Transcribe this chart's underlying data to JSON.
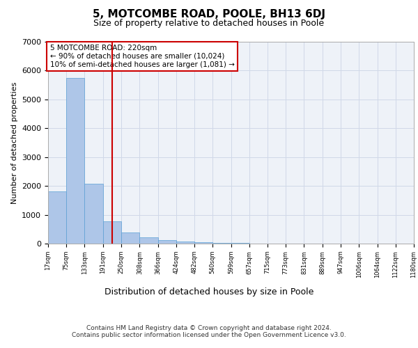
{
  "title": "5, MOTCOMBE ROAD, POOLE, BH13 6DJ",
  "subtitle": "Size of property relative to detached houses in Poole",
  "xlabel": "Distribution of detached houses by size in Poole",
  "ylabel": "Number of detached properties",
  "footer_line1": "Contains HM Land Registry data © Crown copyright and database right 2024.",
  "footer_line2": "Contains public sector information licensed under the Open Government Licence v3.0.",
  "annotation_line1": "5 MOTCOMBE ROAD: 220sqm",
  "annotation_line2": "← 90% of detached houses are smaller (10,024)",
  "annotation_line3": "10% of semi-detached houses are larger (1,081) →",
  "property_size": 220,
  "bar_edges": [
    17,
    75,
    133,
    191,
    250,
    308,
    366,
    424,
    482,
    540,
    599,
    657,
    715,
    773,
    831,
    889,
    947,
    1006,
    1064,
    1122,
    1180
  ],
  "bar_heights": [
    1800,
    5750,
    2080,
    780,
    390,
    210,
    110,
    75,
    50,
    35,
    15,
    10,
    8,
    5,
    3,
    2,
    2,
    1,
    1,
    1
  ],
  "bar_color": "#aec6e8",
  "bar_edgecolor": "#5a9fd4",
  "vline_color": "#cc0000",
  "vline_x": 220,
  "ylim": [
    0,
    7000
  ],
  "xlim": [
    17,
    1180
  ],
  "grid_color": "#d0d8e8",
  "bg_color": "#eef2f8",
  "tick_labels": [
    "17sqm",
    "75sqm",
    "133sqm",
    "191sqm",
    "250sqm",
    "308sqm",
    "366sqm",
    "424sqm",
    "482sqm",
    "540sqm",
    "599sqm",
    "657sqm",
    "715sqm",
    "773sqm",
    "831sqm",
    "889sqm",
    "947sqm",
    "1006sqm",
    "1064sqm",
    "1122sqm",
    "1180sqm"
  ],
  "yticks": [
    0,
    1000,
    2000,
    3000,
    4000,
    5000,
    6000,
    7000
  ],
  "annotation_box_edgecolor": "#cc0000",
  "annotation_box_facecolor": "#ffffff"
}
